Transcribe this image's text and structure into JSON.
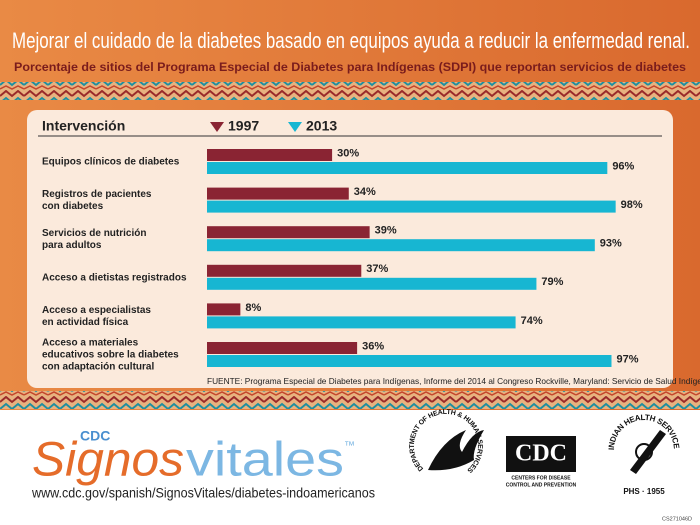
{
  "header": {
    "title": "Mejorar el cuidado de la diabetes basado en equipos ayuda a reducir la enfermedad renal.",
    "subtitle": "Porcentaje de sitios del Programa Especial de Diabetes para Indígenas (SDPI) que reportan servicios de diabetes"
  },
  "chart_data": {
    "type": "bar",
    "orientation": "horizontal",
    "category_header": "Intervención",
    "categories": [
      [
        "Equipos clínicos de diabetes"
      ],
      [
        "Registros de pacientes",
        "con diabetes"
      ],
      [
        "Servicios de nutrición",
        "para adultos"
      ],
      [
        "Acceso a dietistas registrados"
      ],
      [
        "Acceso a especialistas",
        "en actividad física"
      ],
      [
        "Acceso a materiales",
        "educativos sobre la diabetes",
        "con adaptación cultural"
      ]
    ],
    "series": [
      {
        "name": "1997",
        "color": "#8a2433",
        "values": [
          30,
          34,
          39,
          37,
          8,
          36
        ],
        "value_labels": [
          "30%",
          "34%",
          "39%",
          "37%",
          "8%",
          "36%"
        ]
      },
      {
        "name": "2013",
        "color": "#17b6d2",
        "values": [
          96,
          98,
          93,
          79,
          74,
          97
        ],
        "value_labels": [
          "96%",
          "98%",
          "93%",
          "79%",
          "74%",
          "97%"
        ]
      }
    ],
    "xlim": [
      0,
      100
    ],
    "source": "FUENTE: Programa Especial de Diabetes para Indígenas, Informe del 2014 al Congreso Rockville, Maryland: Servicio de Salud Indígena"
  },
  "footer": {
    "brand_small": "CDC",
    "brand_part1": "Signos",
    "brand_part2": "vitales",
    "trademark": "™",
    "url": "www.cdc.gov/spanish/SignosVitales/diabetes-indoamericanos",
    "hhs_seal": "DEPARTMENT OF HEALTH & HUMAN SERVICES · USA",
    "cdc_logo": "CDC",
    "cdc_line1": "CENTERS FOR DISEASE",
    "cdc_line2": "CONTROL AND PREVENTION",
    "ihs_seal": "INDIAN HEALTH SERVICE",
    "ihs_bottom": "PHS · 1955",
    "code": "CS271046D"
  }
}
